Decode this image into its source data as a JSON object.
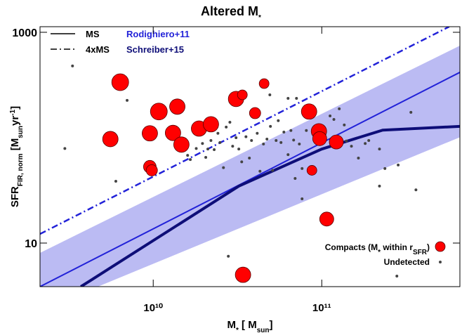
{
  "chart_data": {
    "type": "scatter",
    "title": [
      "Altered M",
      "*"
    ],
    "x_label": [
      "M",
      "*",
      " [ M",
      "sun",
      "]"
    ],
    "y_label": [
      "SFR",
      "FIR, norm",
      " [M",
      "sun",
      "yr",
      "-1",
      "]"
    ],
    "xscale": "log",
    "yscale": "log",
    "xlim": [
      2130000000.0,
      660000000000.0
    ],
    "ylim": [
      3.86,
      1130
    ],
    "xticks": [
      {
        "value": 10000000000.0,
        "label": "10¹⁰"
      },
      {
        "value": 100000000000.0,
        "label": "10¹¹"
      }
    ],
    "yticks": [
      10,
      1000
    ],
    "line_legend": [
      {
        "label": "MS",
        "dash": "solid"
      },
      {
        "label": "4xMS",
        "dash": "dashdot"
      }
    ],
    "series": [
      {
        "type": "ms",
        "name": "Rodighiero+11",
        "color": "#2222d8",
        "band_color": "#bbbbf3",
        "x": [
          2130000000.0,
          660000000000.0
        ],
        "ms": [
          3.86,
          417
        ],
        "ms4_x": [
          2130000000.0,
          570000000000.0
        ],
        "ms4": [
          12.2,
          1130
        ],
        "band_lower": [
          2.29,
          101
        ],
        "band_upper": [
          8.07,
          747
        ]
      },
      {
        "type": "curve",
        "name": "Schreiber+15",
        "color": "#0e0e78",
        "x": [
          3720000000.0,
          32200000000.0,
          100000000000.0,
          230000000000.0,
          660000000000.0
        ],
        "values": [
          3.86,
          34.7,
          78,
          118,
          128
        ]
      },
      {
        "type": "points",
        "name": [
          "Compacts (M",
          "*",
          " within r",
          "SFR",
          ")"
        ],
        "color": "#ff0000",
        "x": [
          6370000000.0,
          5570000000.0,
          10800000000.0,
          9550000000.0,
          13100000000.0,
          13900000000.0,
          14700000000.0,
          18700000000.0,
          22000000000.0,
          31000000000.0,
          33800000000.0,
          40200000000.0,
          45500000000.0,
          84100000000.0,
          96200000000.0,
          97200000000.0,
          122000000000.0,
          87400000000.0,
          9550000000.0,
          9810000000.0,
          107000000000.0,
          34100000000.0
        ],
        "values": [
          336,
          97,
          177,
          110,
          111,
          197,
          86,
          122,
          134,
          233,
          255,
          171,
          326,
          177,
          115,
          98,
          91,
          49,
          53,
          49,
          16.9,
          5.0
        ],
        "sizes": [
          12,
          11,
          12,
          11,
          11,
          11,
          11,
          11,
          11,
          11,
          7,
          8,
          7,
          11,
          11,
          10,
          10,
          7,
          9,
          8,
          10,
          11
        ]
      },
      {
        "type": "dots",
        "name": [
          "Undetected"
        ],
        "color": "#444444",
        "x": [
          3320000000.0,
          2990000000.0,
          7000000000.0,
          6000000000.0,
          16000000000.0,
          16600000000.0,
          18000000000.0,
          19600000000.0,
          20500000000.0,
          21100000000.0,
          22000000000.0,
          23000000000.0,
          24200000000.0,
          24900000000.0,
          26100000000.0,
          27100000000.0,
          28500000000.0,
          29600000000.0,
          31000000000.0,
          32200000000.0,
          33500000000.0,
          35500000000.0,
          37200000000.0,
          38300000000.0,
          41400000000.0,
          43000000000.0,
          45100000000.0,
          47300000000.0,
          49600000000.0,
          51100000000.0,
          53600000000.0,
          55200000000.0,
          57300000000.0,
          59600000000.0,
          63100000000.0,
          65600000000.0,
          68100000000.0,
          70800000000.0,
          73600000000.0,
          76400000000.0,
          81000000000.0,
          112000000000.0,
          118000000000.0,
          127000000000.0,
          136000000000.0,
          140000000000.0,
          150000000000.0,
          165000000000.0,
          181000000000.0,
          190000000000.0,
          220000000000.0,
          237000000000.0,
          284000000000.0,
          338000000000.0,
          220000000000.0,
          362000000000.0,
          27900000000.0,
          279000000000.0,
          76400000000.0,
          69500000000.0,
          49200000000.0,
          63100000000.0
        ],
        "values": [
          479,
          79,
          226,
          38.6,
          68,
          62,
          79,
          88,
          65,
          78,
          94,
          77,
          110,
          90,
          52,
          126,
          140,
          83,
          100,
          78,
          59,
          102,
          64,
          94,
          110,
          48,
          87,
          97,
          128,
          49,
          94,
          145,
          90,
          113,
          69,
          117,
          95,
          236,
          87,
          51,
          117,
          161,
          149,
          188,
          132,
          93,
          83,
          64,
          88,
          94,
          34.7,
          51,
          55,
          174,
          78,
          32,
          7.5,
          4.86,
          26.3,
          41,
          255,
          236
        ]
      }
    ]
  }
}
